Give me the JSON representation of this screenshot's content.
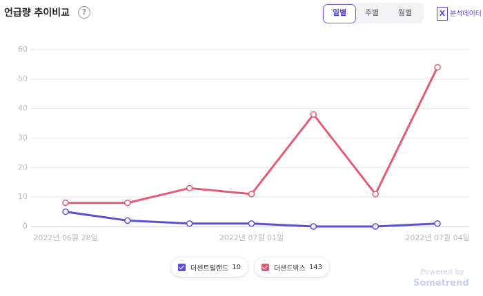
{
  "header": {
    "title": "언급량 추이비교",
    "help": "?",
    "tabs": [
      "일별",
      "주별",
      "월별"
    ],
    "selected_tab": "일별",
    "export": "분석데이터",
    "export_icon": "X"
  },
  "footer": {
    "powered": "Powered by",
    "brand": "Sometrend"
  },
  "chart_data": {
    "type": "line",
    "categories": [
      "2022년 06월 28일",
      null,
      null,
      "2022년 07월 01일",
      null,
      null,
      "2022년 07월 04일"
    ],
    "series": [
      {
        "name": "더센트럴랜드",
        "total": 10,
        "color": "#5b4fd6",
        "values": [
          5,
          2,
          1,
          1,
          0,
          0,
          1
        ]
      },
      {
        "name": "더샌드박스",
        "total": 143,
        "color": "#e55a73",
        "values": [
          8,
          8,
          13,
          11,
          38,
          11,
          54
        ]
      }
    ],
    "ylim": [
      0,
      60
    ],
    "yticks": [
      0,
      10,
      20,
      30,
      40,
      50,
      60
    ],
    "grid": true
  }
}
